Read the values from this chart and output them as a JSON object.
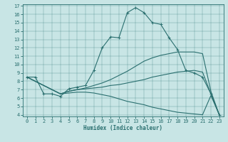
{
  "xlabel": "Humidex (Indice chaleur)",
  "bg_color": "#c8e5e5",
  "line_color": "#2a6f6f",
  "xlim": [
    -0.5,
    23.5
  ],
  "ylim": [
    3.8,
    17.2
  ],
  "yticks": [
    4,
    5,
    6,
    7,
    8,
    9,
    10,
    11,
    12,
    13,
    14,
    15,
    16,
    17
  ],
  "xticks": [
    0,
    1,
    2,
    3,
    4,
    5,
    6,
    7,
    8,
    9,
    10,
    11,
    12,
    13,
    14,
    15,
    16,
    17,
    18,
    19,
    20,
    21,
    22,
    23
  ],
  "lines": [
    {
      "x": [
        0,
        1,
        2,
        3,
        4,
        5,
        6,
        7,
        8,
        9,
        10,
        11,
        12,
        13,
        14,
        15,
        16,
        17,
        18,
        19,
        20,
        21,
        22,
        23
      ],
      "y": [
        8.5,
        8.5,
        6.5,
        6.5,
        6.2,
        7.1,
        7.3,
        7.5,
        9.3,
        12.0,
        13.3,
        13.2,
        16.2,
        16.8,
        16.2,
        15.0,
        14.8,
        13.2,
        11.8,
        9.3,
        9.0,
        8.5,
        6.5,
        4.0
      ],
      "marker": "+"
    },
    {
      "x": [
        0,
        4,
        5,
        6,
        7,
        8,
        9,
        10,
        11,
        12,
        13,
        14,
        15,
        16,
        17,
        18,
        19,
        20,
        21,
        22,
        23
      ],
      "y": [
        8.5,
        6.5,
        6.8,
        7.0,
        7.2,
        7.5,
        7.8,
        8.2,
        8.7,
        9.2,
        9.8,
        10.4,
        10.8,
        11.1,
        11.3,
        11.5,
        11.5,
        11.5,
        11.3,
        6.8,
        4.0
      ],
      "marker": null
    },
    {
      "x": [
        0,
        4,
        5,
        6,
        7,
        8,
        9,
        10,
        11,
        12,
        13,
        14,
        15,
        16,
        17,
        18,
        19,
        20,
        21,
        22,
        23
      ],
      "y": [
        8.5,
        6.5,
        6.8,
        7.0,
        7.1,
        7.2,
        7.3,
        7.5,
        7.6,
        7.8,
        8.0,
        8.2,
        8.5,
        8.7,
        8.9,
        9.1,
        9.2,
        9.3,
        9.1,
        6.5,
        4.0
      ],
      "marker": null
    },
    {
      "x": [
        0,
        4,
        5,
        6,
        7,
        8,
        9,
        10,
        11,
        12,
        13,
        14,
        15,
        16,
        17,
        18,
        19,
        20,
        21,
        22,
        23
      ],
      "y": [
        8.5,
        6.5,
        6.6,
        6.7,
        6.7,
        6.6,
        6.4,
        6.2,
        5.9,
        5.6,
        5.4,
        5.2,
        4.9,
        4.7,
        4.5,
        4.3,
        4.2,
        4.1,
        4.0,
        6.3,
        4.0
      ],
      "marker": null
    }
  ]
}
